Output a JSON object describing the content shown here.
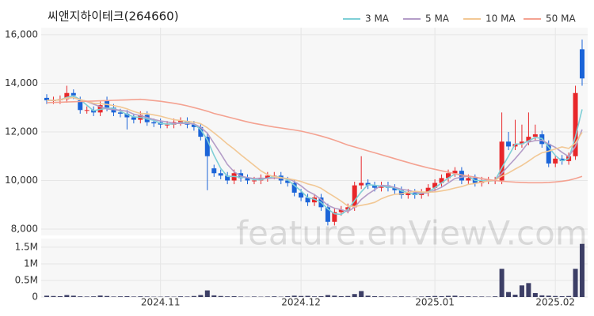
{
  "watermark": "feature.enViewV.com",
  "chart_data": [
    {
      "type": "candlestick",
      "title": "씨앤지하이테크(264660)",
      "up_color": "#e8272a",
      "down_color": "#1b64d8",
      "open": [
        13400,
        13300,
        13300,
        13350,
        13600,
        13300,
        12900,
        12900,
        12800,
        13300,
        13000,
        12800,
        12750,
        12600,
        12500,
        12700,
        12400,
        12400,
        12300,
        12300,
        12400,
        12450,
        12300,
        12200,
        11800,
        10500,
        10300,
        10200,
        10000,
        10300,
        10100,
        10000,
        10000,
        10100,
        10200,
        10200,
        10000,
        9900,
        9500,
        9300,
        9100,
        9300,
        8900,
        8300,
        8700,
        8800,
        8900,
        9800,
        9900,
        9800,
        9700,
        9800,
        9700,
        9600,
        9400,
        9500,
        9400,
        9500,
        9700,
        9900,
        10100,
        10300,
        10400,
        10000,
        10100,
        9900,
        10000,
        10000,
        10000,
        11600,
        11400,
        11500,
        11600,
        11800,
        11900,
        11500,
        10700,
        10900,
        10800,
        11000,
        15400
      ],
      "high": [
        13550,
        13450,
        13500,
        13900,
        13750,
        13450,
        13050,
        13050,
        13250,
        13450,
        13150,
        12950,
        12900,
        12750,
        12850,
        12850,
        12550,
        12550,
        12450,
        12550,
        12600,
        12600,
        12450,
        12350,
        11950,
        10650,
        10450,
        10350,
        10450,
        10450,
        10250,
        10150,
        10250,
        10350,
        10350,
        10350,
        10150,
        10050,
        9650,
        9450,
        9450,
        9450,
        9050,
        8850,
        8950,
        9050,
        9950,
        11000,
        10050,
        9950,
        9950,
        9950,
        9850,
        9750,
        9650,
        9650,
        9650,
        9850,
        10050,
        10250,
        10450,
        10550,
        10550,
        10250,
        10250,
        10150,
        10150,
        10150,
        12800,
        12000,
        12500,
        12300,
        12800,
        12300,
        12050,
        11650,
        11050,
        11050,
        11150,
        13900,
        15800
      ],
      "low": [
        13150,
        13150,
        13150,
        13200,
        13350,
        12750,
        12750,
        12650,
        12650,
        12850,
        12650,
        12600,
        12100,
        12350,
        12350,
        12250,
        12200,
        12150,
        12150,
        12150,
        12250,
        12150,
        12050,
        11650,
        9600,
        10150,
        10050,
        9850,
        9850,
        9950,
        9850,
        9850,
        9850,
        9950,
        10050,
        9850,
        9750,
        9350,
        9150,
        8950,
        8950,
        8750,
        8150,
        8150,
        8550,
        8650,
        8750,
        9650,
        9650,
        9550,
        9550,
        9550,
        9450,
        9250,
        9250,
        9250,
        9250,
        9350,
        9550,
        9750,
        9950,
        10150,
        9850,
        9850,
        9750,
        9750,
        9850,
        9850,
        9850,
        11250,
        11250,
        11350,
        11450,
        11650,
        11350,
        10550,
        10550,
        10650,
        10650,
        10850,
        13900
      ],
      "close": [
        13300,
        13300,
        13350,
        13600,
        13500,
        12900,
        12900,
        12800,
        13100,
        13000,
        12800,
        12750,
        12600,
        12500,
        12700,
        12400,
        12350,
        12300,
        12300,
        12400,
        12450,
        12300,
        12200,
        11800,
        11000,
        10300,
        10200,
        10000,
        10300,
        10100,
        10000,
        10000,
        10100,
        10200,
        10200,
        10000,
        9900,
        9500,
        9300,
        9100,
        9300,
        8900,
        8300,
        8700,
        8800,
        8900,
        9800,
        9900,
        9800,
        9700,
        9800,
        9700,
        9600,
        9400,
        9500,
        9400,
        9500,
        9700,
        9900,
        10100,
        10300,
        10400,
        10000,
        10100,
        9900,
        10000,
        10000,
        10000,
        11600,
        11400,
        11500,
        11600,
        11800,
        11900,
        11500,
        10700,
        10900,
        10800,
        11000,
        13600,
        14200
      ],
      "series": [
        {
          "name": "3 MA",
          "color": "#7fcfd6",
          "values": [
            13300,
            13300,
            13320,
            13420,
            13480,
            13330,
            13100,
            12870,
            12930,
            12970,
            12970,
            12850,
            12720,
            12620,
            12600,
            12530,
            12480,
            12350,
            12320,
            12330,
            12380,
            12380,
            12320,
            12100,
            11670,
            11030,
            10500,
            10170,
            10170,
            10130,
            10130,
            10030,
            10030,
            10100,
            10170,
            10130,
            10030,
            9800,
            9570,
            9300,
            9230,
            9100,
            8830,
            8630,
            8600,
            8800,
            9170,
            9530,
            9830,
            9800,
            9770,
            9730,
            9700,
            9570,
            9500,
            9430,
            9470,
            9530,
            9700,
            9900,
            10100,
            10270,
            10230,
            10170,
            10000,
            10000,
            9970,
            10000,
            10530,
            11000,
            11500,
            11500,
            11630,
            11770,
            11730,
            11370,
            11030,
            10800,
            10900,
            11800,
            12930
          ]
        },
        {
          "name": "5 MA",
          "color": "#b49dc8",
          "values": [
            13300,
            13300,
            13320,
            13390,
            13410,
            13330,
            13250,
            13140,
            13040,
            12940,
            12920,
            12890,
            12850,
            12730,
            12670,
            12590,
            12510,
            12450,
            12410,
            12350,
            12350,
            12350,
            12330,
            12190,
            11950,
            11520,
            11100,
            10660,
            10360,
            10180,
            10120,
            10080,
            10100,
            10080,
            10100,
            10100,
            10080,
            9960,
            9780,
            9560,
            9420,
            9220,
            8980,
            8860,
            8800,
            8720,
            8900,
            9220,
            9440,
            9620,
            9800,
            9780,
            9720,
            9640,
            9600,
            9520,
            9480,
            9500,
            9600,
            9720,
            9900,
            10080,
            10140,
            10180,
            10140,
            10080,
            10000,
            10000,
            10300,
            10600,
            10900,
            11220,
            11580,
            11640,
            11660,
            11500,
            11360,
            11160,
            10980,
            11400,
            12100
          ]
        },
        {
          "name": "10 MA",
          "color": "#f2c895",
          "values": [
            13300,
            13300,
            13320,
            13390,
            13410,
            13320,
            13260,
            13180,
            13160,
            13130,
            13080,
            13030,
            12950,
            12840,
            12760,
            12750,
            12700,
            12650,
            12570,
            12500,
            12470,
            12430,
            12400,
            12340,
            12170,
            11960,
            11740,
            11500,
            11290,
            11060,
            10840,
            10620,
            10400,
            10240,
            10160,
            10110,
            10080,
            10030,
            9960,
            9860,
            9790,
            9680,
            9500,
            9330,
            9150,
            8950,
            8930,
            8980,
            9030,
            9100,
            9250,
            9360,
            9430,
            9450,
            9510,
            9560,
            9530,
            9520,
            9530,
            9570,
            9620,
            9690,
            9750,
            9840,
            9880,
            9930,
            9980,
            10010,
            10180,
            10310,
            10470,
            10620,
            10800,
            10990,
            11140,
            11210,
            11300,
            11380,
            11320,
            11540,
            11980
          ]
        },
        {
          "name": "50 MA",
          "color": "#f4a291",
          "values": [
            13200,
            13210,
            13220,
            13230,
            13240,
            13250,
            13260,
            13270,
            13280,
            13290,
            13300,
            13310,
            13320,
            13330,
            13340,
            13320,
            13290,
            13260,
            13220,
            13180,
            13130,
            13070,
            13000,
            12930,
            12850,
            12760,
            12690,
            12620,
            12550,
            12480,
            12410,
            12350,
            12300,
            12250,
            12200,
            12160,
            12120,
            12080,
            12030,
            11970,
            11900,
            11830,
            11750,
            11660,
            11560,
            11460,
            11380,
            11300,
            11220,
            11140,
            11060,
            10980,
            10900,
            10820,
            10740,
            10660,
            10590,
            10520,
            10460,
            10400,
            10340,
            10280,
            10230,
            10180,
            10130,
            10080,
            10040,
            10000,
            9970,
            9950,
            9930,
            9920,
            9910,
            9910,
            9910,
            9920,
            9940,
            9970,
            10010,
            10080,
            10170
          ]
        }
      ],
      "ylim": [
        7740,
        16290
      ],
      "yticks": [
        {
          "value": 8000,
          "label": "8,000"
        },
        {
          "value": 10000,
          "label": "10,000"
        },
        {
          "value": 12000,
          "label": "12,000"
        },
        {
          "value": 14000,
          "label": "14,000"
        },
        {
          "value": 16000,
          "label": "16,000"
        }
      ],
      "grid": true,
      "legend": "top-right"
    },
    {
      "type": "bar",
      "color": "#3d3f66",
      "categories": [
        null,
        null,
        null,
        null,
        null,
        null,
        null,
        null,
        null,
        null,
        null,
        null,
        null,
        null,
        null,
        null,
        null,
        "2024.11",
        null,
        null,
        null,
        null,
        null,
        null,
        null,
        null,
        null,
        null,
        null,
        null,
        null,
        null,
        null,
        null,
        null,
        null,
        null,
        null,
        "2024.12",
        null,
        null,
        null,
        null,
        null,
        null,
        null,
        null,
        null,
        null,
        null,
        null,
        null,
        null,
        null,
        null,
        null,
        null,
        null,
        "2025.01",
        null,
        null,
        null,
        null,
        null,
        null,
        null,
        null,
        null,
        null,
        null,
        null,
        null,
        null,
        null,
        null,
        null,
        "2025.02",
        null,
        null,
        null,
        null
      ],
      "values": [
        40000,
        30000,
        25000,
        60000,
        40000,
        20000,
        15000,
        20000,
        45000,
        30000,
        15000,
        20000,
        25000,
        15000,
        20000,
        15000,
        10000,
        10000,
        15000,
        10000,
        20000,
        15000,
        30000,
        60000,
        200000,
        50000,
        30000,
        20000,
        25000,
        15000,
        10000,
        15000,
        10000,
        15000,
        20000,
        10000,
        25000,
        40000,
        30000,
        35000,
        20000,
        25000,
        60000,
        40000,
        25000,
        30000,
        90000,
        180000,
        40000,
        25000,
        20000,
        15000,
        15000,
        20000,
        15000,
        10000,
        15000,
        25000,
        30000,
        25000,
        35000,
        40000,
        20000,
        20000,
        15000,
        15000,
        10000,
        20000,
        850000,
        150000,
        70000,
        350000,
        420000,
        120000,
        50000,
        40000,
        30000,
        25000,
        30000,
        850000,
        1600000
      ],
      "ylim": [
        0,
        1760000
      ],
      "yticks": [
        0,
        {
          "value": 500000,
          "label": "0.5M"
        },
        {
          "value": 1000000,
          "label": "1M"
        },
        {
          "value": 1500000,
          "label": "1.5M"
        }
      ],
      "grid": true
    }
  ]
}
